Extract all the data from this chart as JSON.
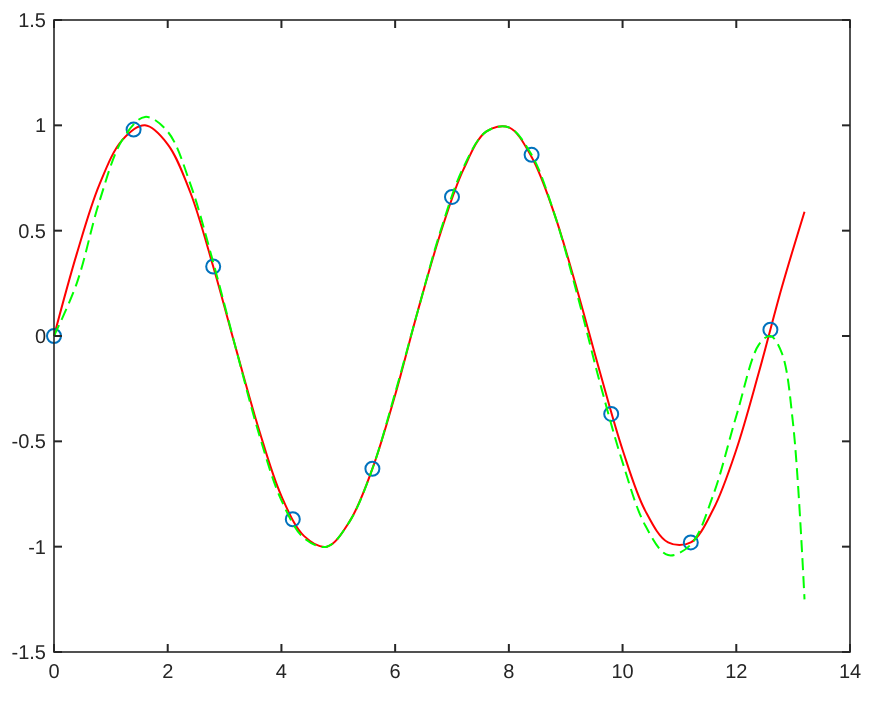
{
  "chart_data": {
    "type": "line",
    "xlim": [
      0,
      14
    ],
    "ylim": [
      -1.5,
      1.5
    ],
    "xticks": [
      0,
      2,
      4,
      6,
      8,
      10,
      12,
      14
    ],
    "yticks": [
      -1.5,
      -1,
      -0.5,
      0,
      0.5,
      1,
      1.5
    ],
    "grid": false,
    "series": [
      {
        "color": "#ff0000",
        "line_style": "solid",
        "x": [
          0,
          0.4,
          0.8,
          1.2,
          1.6,
          2.0,
          2.4,
          2.8,
          3.2,
          3.6,
          4.0,
          4.4,
          4.8,
          5.2,
          5.6,
          6.0,
          6.4,
          6.8,
          7.2,
          7.6,
          8.0,
          8.4,
          8.8,
          9.2,
          9.6,
          10.0,
          10.4,
          10.8,
          11.2,
          11.6,
          12.0,
          12.4,
          12.8,
          13.2
        ],
        "values": [
          0,
          0.39,
          0.72,
          0.93,
          1.0,
          0.91,
          0.68,
          0.33,
          -0.06,
          -0.44,
          -0.76,
          -0.95,
          -1.0,
          -0.88,
          -0.63,
          -0.28,
          0.12,
          0.49,
          0.79,
          0.97,
          0.99,
          0.85,
          0.58,
          0.22,
          -0.17,
          -0.54,
          -0.83,
          -0.98,
          -0.98,
          -0.82,
          -0.54,
          -0.17,
          0.23,
          0.59
        ]
      },
      {
        "type": "scatter",
        "color": "#0072bd",
        "marker": "circle",
        "x": [
          0,
          1.4,
          2.8,
          4.2,
          5.6,
          7.0,
          8.4,
          9.8,
          11.2,
          12.6
        ],
        "values": [
          0,
          0.98,
          0.33,
          -0.87,
          -0.63,
          0.66,
          0.86,
          -0.37,
          -0.98,
          0.03
        ]
      },
      {
        "type": "line",
        "color": "#00ff00",
        "line_style": "dashed",
        "x": [
          0,
          0.4,
          0.8,
          1.2,
          1.6,
          2.0,
          2.4,
          2.8,
          3.2,
          3.6,
          4.0,
          4.4,
          4.8,
          5.2,
          5.6,
          6.0,
          6.4,
          6.8,
          7.2,
          7.6,
          8.0,
          8.4,
          8.8,
          9.2,
          9.6,
          10.0,
          10.4,
          10.8,
          11.2,
          11.6,
          12.0,
          12.4,
          12.6,
          12.8,
          13.0,
          13.2
        ],
        "values": [
          0,
          0.25,
          0.64,
          0.93,
          1.04,
          0.97,
          0.72,
          0.35,
          -0.06,
          -0.46,
          -0.78,
          -0.96,
          -1.0,
          -0.88,
          -0.63,
          -0.27,
          0.12,
          0.5,
          0.8,
          0.97,
          0.99,
          0.86,
          0.58,
          0.2,
          -0.22,
          -0.6,
          -0.9,
          -1.04,
          -0.99,
          -0.75,
          -0.38,
          -0.04,
          0,
          -0.08,
          -0.42,
          -1.25
        ]
      }
    ]
  }
}
